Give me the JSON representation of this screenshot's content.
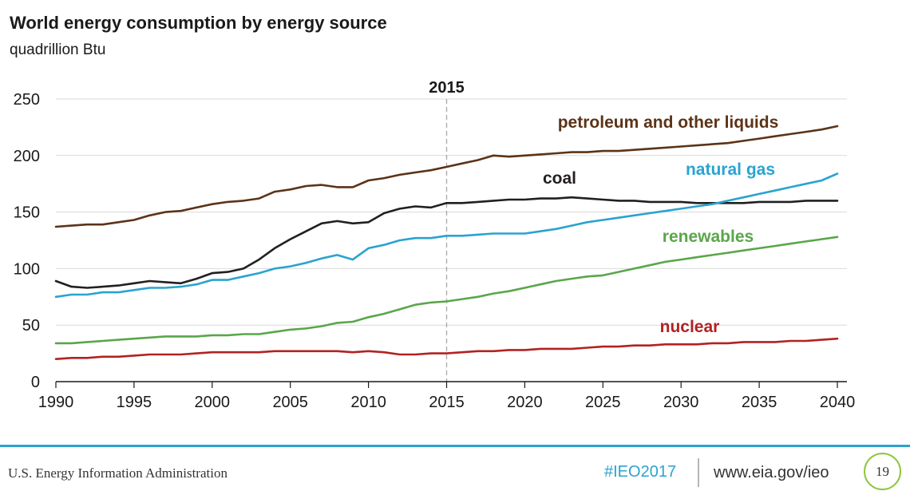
{
  "chart_data": {
    "type": "line",
    "title": "World energy consumption by energy source",
    "subtitle": "quadrillion Btu",
    "xlim": [
      1990,
      2040
    ],
    "ylim": [
      0,
      250
    ],
    "x_ticks": [
      1990,
      1995,
      2000,
      2005,
      2010,
      2015,
      2020,
      2025,
      2030,
      2035,
      2040
    ],
    "y_ticks": [
      0,
      50,
      100,
      150,
      200,
      250
    ],
    "grid": "horizontal",
    "reference_line": {
      "x": 2015,
      "label": "2015"
    },
    "series": [
      {
        "name": "petroleum and other liquids",
        "color": "#5c3317",
        "x": [
          1990,
          1991,
          1992,
          1993,
          1994,
          1995,
          1996,
          1997,
          1998,
          1999,
          2000,
          2001,
          2002,
          2003,
          2004,
          2005,
          2006,
          2007,
          2008,
          2009,
          2010,
          2011,
          2012,
          2013,
          2014,
          2015,
          2016,
          2017,
          2018,
          2019,
          2020,
          2021,
          2022,
          2023,
          2024,
          2025,
          2026,
          2027,
          2028,
          2029,
          2030,
          2031,
          2032,
          2033,
          2034,
          2035,
          2036,
          2037,
          2038,
          2039,
          2040
        ],
        "values": [
          137,
          138,
          139,
          139,
          141,
          143,
          147,
          150,
          151,
          154,
          157,
          159,
          160,
          162,
          168,
          170,
          173,
          174,
          172,
          172,
          178,
          180,
          183,
          185,
          187,
          190,
          193,
          196,
          200,
          199,
          200,
          201,
          202,
          203,
          203,
          204,
          204,
          205,
          206,
          207,
          208,
          209,
          210,
          211,
          213,
          215,
          217,
          219,
          221,
          223,
          226
        ]
      },
      {
        "name": "coal",
        "color": "#231f20",
        "x": [
          1990,
          1991,
          1992,
          1993,
          1994,
          1995,
          1996,
          1997,
          1998,
          1999,
          2000,
          2001,
          2002,
          2003,
          2004,
          2005,
          2006,
          2007,
          2008,
          2009,
          2010,
          2011,
          2012,
          2013,
          2014,
          2015,
          2016,
          2017,
          2018,
          2019,
          2020,
          2021,
          2022,
          2023,
          2024,
          2025,
          2026,
          2027,
          2028,
          2029,
          2030,
          2031,
          2032,
          2033,
          2034,
          2035,
          2036,
          2037,
          2038,
          2039,
          2040
        ],
        "values": [
          89,
          84,
          83,
          84,
          85,
          87,
          89,
          88,
          87,
          91,
          96,
          97,
          100,
          108,
          118,
          126,
          133,
          140,
          142,
          140,
          141,
          149,
          153,
          155,
          154,
          158,
          158,
          159,
          160,
          161,
          161,
          162,
          162,
          163,
          162,
          161,
          160,
          160,
          159,
          159,
          159,
          158,
          158,
          158,
          158,
          159,
          159,
          159,
          160,
          160,
          160
        ]
      },
      {
        "name": "natural gas",
        "color": "#2aa3cf",
        "x": [
          1990,
          1991,
          1992,
          1993,
          1994,
          1995,
          1996,
          1997,
          1998,
          1999,
          2000,
          2001,
          2002,
          2003,
          2004,
          2005,
          2006,
          2007,
          2008,
          2009,
          2010,
          2011,
          2012,
          2013,
          2014,
          2015,
          2016,
          2017,
          2018,
          2019,
          2020,
          2021,
          2022,
          2023,
          2024,
          2025,
          2026,
          2027,
          2028,
          2029,
          2030,
          2031,
          2032,
          2033,
          2034,
          2035,
          2036,
          2037,
          2038,
          2039,
          2040
        ],
        "values": [
          75,
          77,
          77,
          79,
          79,
          81,
          83,
          83,
          84,
          86,
          90,
          90,
          93,
          96,
          100,
          102,
          105,
          109,
          112,
          108,
          118,
          121,
          125,
          127,
          127,
          129,
          129,
          130,
          131,
          131,
          131,
          133,
          135,
          138,
          141,
          143,
          145,
          147,
          149,
          151,
          153,
          155,
          157,
          160,
          163,
          166,
          169,
          172,
          175,
          178,
          184
        ]
      },
      {
        "name": "renewables",
        "color": "#5aa64a",
        "x": [
          1990,
          1991,
          1992,
          1993,
          1994,
          1995,
          1996,
          1997,
          1998,
          1999,
          2000,
          2001,
          2002,
          2003,
          2004,
          2005,
          2006,
          2007,
          2008,
          2009,
          2010,
          2011,
          2012,
          2013,
          2014,
          2015,
          2016,
          2017,
          2018,
          2019,
          2020,
          2021,
          2022,
          2023,
          2024,
          2025,
          2026,
          2027,
          2028,
          2029,
          2030,
          2031,
          2032,
          2033,
          2034,
          2035,
          2036,
          2037,
          2038,
          2039,
          2040
        ],
        "values": [
          34,
          34,
          35,
          36,
          37,
          38,
          39,
          40,
          40,
          40,
          41,
          41,
          42,
          42,
          44,
          46,
          47,
          49,
          52,
          53,
          57,
          60,
          64,
          68,
          70,
          71,
          73,
          75,
          78,
          80,
          83,
          86,
          89,
          91,
          93,
          94,
          97,
          100,
          103,
          106,
          108,
          110,
          112,
          114,
          116,
          118,
          120,
          122,
          124,
          126,
          128
        ]
      },
      {
        "name": "nuclear",
        "color": "#b22222",
        "x": [
          1990,
          1991,
          1992,
          1993,
          1994,
          1995,
          1996,
          1997,
          1998,
          1999,
          2000,
          2001,
          2002,
          2003,
          2004,
          2005,
          2006,
          2007,
          2008,
          2009,
          2010,
          2011,
          2012,
          2013,
          2014,
          2015,
          2016,
          2017,
          2018,
          2019,
          2020,
          2021,
          2022,
          2023,
          2024,
          2025,
          2026,
          2027,
          2028,
          2029,
          2030,
          2031,
          2032,
          2033,
          2034,
          2035,
          2036,
          2037,
          2038,
          2039,
          2040
        ],
        "values": [
          20,
          21,
          21,
          22,
          22,
          23,
          24,
          24,
          24,
          25,
          26,
          26,
          26,
          26,
          27,
          27,
          27,
          27,
          27,
          26,
          27,
          26,
          24,
          24,
          25,
          25,
          26,
          27,
          27,
          28,
          28,
          29,
          29,
          29,
          30,
          31,
          31,
          32,
          32,
          33,
          33,
          33,
          34,
          34,
          35,
          35,
          35,
          36,
          36,
          37,
          38
        ]
      }
    ],
    "series_labels": [
      {
        "text": "petroleum and other liquids",
        "color": "#5c3317"
      },
      {
        "text": "coal",
        "color": "#231f20"
      },
      {
        "text": "natural gas",
        "color": "#2aa3cf"
      },
      {
        "text": "renewables",
        "color": "#5aa64a"
      },
      {
        "text": "nuclear",
        "color": "#b22222"
      }
    ]
  },
  "footer": {
    "organization": "U.S. Energy Information Administration",
    "hashtag": "#IEO2017",
    "url": "www.eia.gov/ieo",
    "page_number": "19"
  }
}
